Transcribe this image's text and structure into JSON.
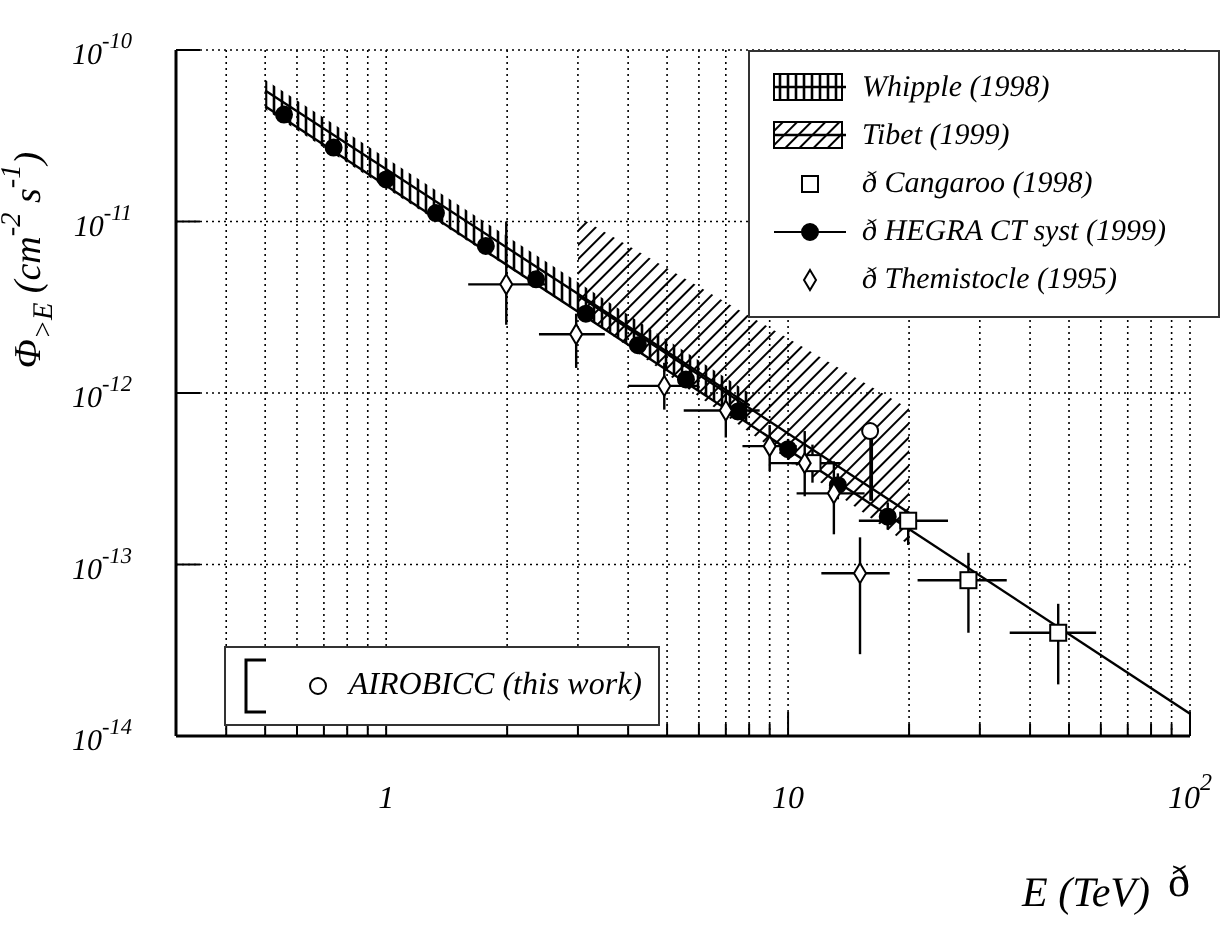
{
  "chart_data": {
    "type": "scatter",
    "xlabel": "E (TeV)",
    "ylabel": "Φ$_{>E}$ (cm$^{-2}$ s$^{-1}$)",
    "log": "xy",
    "grid": true,
    "legend": "top right",
    "xlim": [
      0.3,
      100
    ],
    "ylim": [
      1e-14,
      1e-10
    ],
    "xticks": [
      {
        "value": 0.3,
        "label": null
      },
      {
        "value": 0.4,
        "label": null
      },
      {
        "value": 0.5,
        "label": null
      },
      {
        "value": 0.6,
        "label": null
      },
      {
        "value": 0.7,
        "label": null
      },
      {
        "value": 0.8,
        "label": null
      },
      {
        "value": 0.9,
        "label": null
      },
      1,
      {
        "value": 2,
        "label": null
      },
      {
        "value": 3,
        "label": null
      },
      {
        "value": 4,
        "label": null
      },
      {
        "value": 5,
        "label": null
      },
      {
        "value": 6,
        "label": null
      },
      {
        "value": 7,
        "label": null
      },
      {
        "value": 8,
        "label": null
      },
      {
        "value": 9,
        "label": null
      },
      10,
      {
        "value": 20,
        "label": null
      },
      {
        "value": 30,
        "label": null
      },
      {
        "value": 40,
        "label": null
      },
      {
        "value": 50,
        "label": null
      },
      {
        "value": 60,
        "label": null
      },
      {
        "value": 70,
        "label": null
      },
      {
        "value": 80,
        "label": null
      },
      {
        "value": 90,
        "label": null
      },
      {
        "value": 100,
        "label": "10$^{2}$"
      }
    ],
    "yticks": [
      {
        "value": 1e-14,
        "label": "10$^{-14}$"
      },
      {
        "value": 1e-13,
        "label": "10$^{-13}$"
      },
      {
        "value": 1e-12,
        "label": "10$^{-12}$"
      },
      {
        "value": 1e-11,
        "label": "10$^{-11}$"
      },
      {
        "value": 1e-10,
        "label": "10$^{-10}$"
      }
    ],
    "annotations": [
      "ð"
    ],
    "series": [
      {
        "name": "Whipple (1998)",
        "type": "line",
        "color": "#000000",
        "x": [
          0.5,
          8
        ],
        "values": [
          5.8e-11,
          8.5e-13
        ],
        "lower": [
          4.5e-11,
          6.6e-13
        ],
        "upper": [
          6.7e-11,
          1e-12
        ]
      },
      {
        "name": "Tibet (1999)",
        "type": "line",
        "color": "#000000",
        "x": [
          3,
          20
        ],
        "values": [
          3.7e-12,
          2e-13
        ],
        "lower": [
          3e-12,
          1.3e-13
        ],
        "upper": [
          1.07e-11,
          8.1e-13
        ]
      },
      {
        "type": "line",
        "color": "#000000",
        "x": [
          0.5,
          100
        ],
        "values": [
          4.7e-11,
          1.35e-14
        ]
      },
      {
        "name": "ð Cangaroo (1998)",
        "marker": "square",
        "color": "#ffffff",
        "x": [
          11.5,
          19.9,
          28.1,
          47
        ],
        "values": [
          3.9e-13,
          1.8e-13,
          8.1e-14,
          4e-14
        ],
        "errors": [
          [
            3e-13,
            5e-13
          ],
          [
            1.3e-13,
            2e-13
          ],
          [
            4e-14,
            1.17e-13
          ],
          [
            2e-14,
            5.9e-14
          ]
        ],
        "xerrors": [
          [
            10.2,
            13.5
          ],
          [
            15,
            25
          ],
          [
            21,
            35
          ],
          [
            35.6,
            58.4
          ]
        ]
      },
      {
        "name": "ð HEGRA CT syst (1999)",
        "marker": "circle",
        "color": "#000000",
        "x": [
          0.557,
          0.74,
          1.0,
          1.33,
          1.77,
          2.36,
          3.14,
          4.23,
          5.57,
          7.5,
          10,
          13.3,
          17.7
        ],
        "values": [
          4.2e-11,
          2.7e-11,
          1.76e-11,
          1.12e-11,
          7.2e-12,
          4.6e-12,
          2.9e-12,
          1.9e-12,
          1.2e-12,
          7.8e-13,
          4.7e-13,
          2.9e-13,
          1.9e-13
        ],
        "errors": [
          null,
          null,
          null,
          null,
          null,
          null,
          null,
          null,
          null,
          [
            7e-13,
            8.6e-13
          ],
          [
            4.1e-13,
            5.4e-13
          ],
          [
            2.4e-13,
            3.4e-13
          ],
          [
            1.6e-13,
            2.3e-13
          ]
        ]
      },
      {
        "name": "ð Themistocle (1995)",
        "marker": "diamond",
        "color": "#ffffff",
        "x": [
          1.99,
          2.97,
          4.92,
          7.0,
          9.0,
          11.0,
          13.0,
          15.1
        ],
        "values": [
          4.3e-12,
          2.2e-12,
          1.1e-12,
          7.9e-13,
          4.9e-13,
          3.9e-13,
          2.6e-13,
          8.9e-14
        ],
        "errors": [
          [
            2.5e-12,
            1e-11
          ],
          [
            1.4e-12,
            2.9e-12
          ],
          [
            8e-13,
            1.5e-12
          ],
          [
            5.5e-13,
            1.1e-12
          ],
          [
            3.5e-13,
            6.5e-13
          ],
          [
            2.5e-13,
            6e-13
          ],
          [
            1.5e-13,
            4e-13
          ],
          [
            3e-14,
            1.44e-13
          ]
        ],
        "xerrors": [
          [
            1.6,
            2.5
          ],
          [
            2.4,
            3.5
          ],
          [
            4.0,
            6.0
          ],
          [
            5.5,
            8.5
          ],
          [
            7.7,
            10.5
          ],
          [
            9.0,
            13.0
          ],
          [
            10.5,
            15.5
          ],
          [
            12.1,
            17.9
          ]
        ]
      },
      {
        "type": "bar",
        "color": "#ffffff",
        "x": [
          16.1
        ],
        "base": [
          2.4e-13
        ],
        "values": [
          3.3e-13
        ]
      },
      {
        "name": "AIROBICC (this work)",
        "marker": "circle",
        "color": "#ffffff",
        "x": [
          16.0
        ],
        "values": [
          6e-13
        ]
      }
    ]
  }
}
